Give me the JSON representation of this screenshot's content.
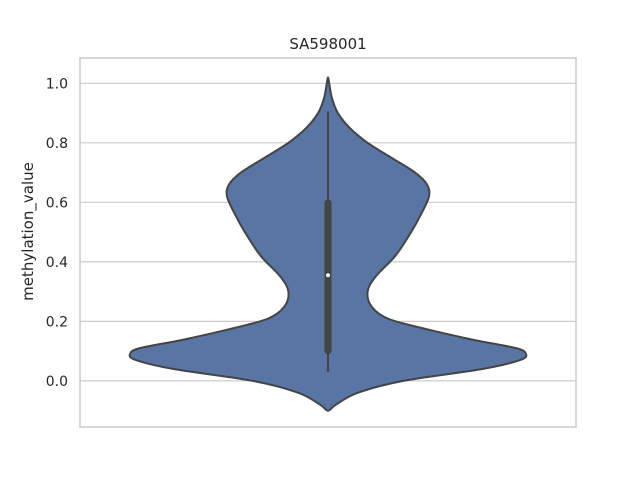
{
  "chart_data": {
    "type": "violin",
    "title": "SA598001",
    "xlabel": "",
    "ylabel": "methylation_value",
    "ylim": [
      -0.155,
      1.085
    ],
    "yticks": [
      0.0,
      0.2,
      0.4,
      0.6,
      0.8,
      1.0
    ],
    "ytick_labels": [
      "0.0",
      "0.2",
      "0.4",
      "0.6",
      "0.8",
      "1.0"
    ],
    "grid": true,
    "colors": {
      "violin_fill": "#5975a4",
      "violin_edge": "#444444",
      "box": "#444444",
      "median": "#ffffff",
      "grid": "#cccccc",
      "spine": "#cccccc"
    },
    "series": [
      {
        "summary": {
          "min": -0.1,
          "max": 1.02,
          "whisker_low": 0.03,
          "q1": 0.09,
          "median": 0.355,
          "q3": 0.61,
          "whisker_high": 0.905
        },
        "density_profile": [
          {
            "y": -0.1,
            "w": 0.0
          },
          {
            "y": -0.08,
            "w": 0.04
          },
          {
            "y": -0.04,
            "w": 0.15
          },
          {
            "y": 0.0,
            "w": 0.38
          },
          {
            "y": 0.04,
            "w": 0.78
          },
          {
            "y": 0.07,
            "w": 0.97
          },
          {
            "y": 0.09,
            "w": 1.0
          },
          {
            "y": 0.11,
            "w": 0.95
          },
          {
            "y": 0.14,
            "w": 0.72
          },
          {
            "y": 0.18,
            "w": 0.46
          },
          {
            "y": 0.21,
            "w": 0.3
          },
          {
            "y": 0.25,
            "w": 0.22
          },
          {
            "y": 0.3,
            "w": 0.2
          },
          {
            "y": 0.35,
            "w": 0.24
          },
          {
            "y": 0.42,
            "w": 0.34
          },
          {
            "y": 0.5,
            "w": 0.42
          },
          {
            "y": 0.56,
            "w": 0.47
          },
          {
            "y": 0.62,
            "w": 0.51
          },
          {
            "y": 0.66,
            "w": 0.5
          },
          {
            "y": 0.7,
            "w": 0.44
          },
          {
            "y": 0.75,
            "w": 0.32
          },
          {
            "y": 0.8,
            "w": 0.2
          },
          {
            "y": 0.85,
            "w": 0.11
          },
          {
            "y": 0.9,
            "w": 0.05
          },
          {
            "y": 0.95,
            "w": 0.02
          },
          {
            "y": 1.0,
            "w": 0.006
          },
          {
            "y": 1.02,
            "w": 0.0
          }
        ]
      }
    ]
  }
}
